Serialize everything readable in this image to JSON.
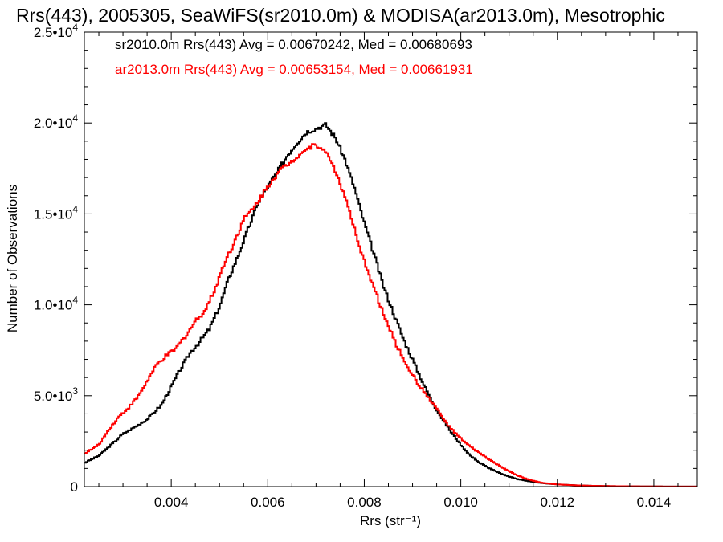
{
  "chart_data": {
    "type": "line",
    "title": "Rrs(443), 2005305, SeaWiFS(sr2010.0m) & MODISA(ar2013.0m), Mesotrophic",
    "xlabel": "Rrs (str⁻¹)",
    "ylabel": "Number of Observations",
    "xlim": [
      0.0022,
      0.0149
    ],
    "ylim": [
      0,
      25000
    ],
    "grid": false,
    "step": true,
    "x_ticks": [
      0.004,
      0.006,
      0.008,
      0.01,
      0.012,
      0.014
    ],
    "x_tick_labels": [
      "0.004",
      "0.006",
      "0.008",
      "0.010",
      "0.012",
      "0.014"
    ],
    "y_ticks": [
      {
        "value": 0,
        "mant": "0",
        "exp": ""
      },
      {
        "value": 5000,
        "mant": "5.0•10",
        "exp": "3"
      },
      {
        "value": 10000,
        "mant": "1.0•10",
        "exp": "4"
      },
      {
        "value": 15000,
        "mant": "1.5•10",
        "exp": "4"
      },
      {
        "value": 20000,
        "mant": "2.0•10",
        "exp": "4"
      },
      {
        "value": 25000,
        "mant": "2.5•10",
        "exp": "4"
      }
    ],
    "annotations": [
      {
        "text": "sr2010.0m Rrs(443) Avg = 0.00670242, Med = 0.00680693",
        "color": "#000000"
      },
      {
        "text": "ar2013.0m Rrs(443) Avg = 0.00653154, Med = 0.00661931",
        "color": "#ff0000"
      }
    ],
    "series": [
      {
        "color": "#000000",
        "x": [
          0.0022,
          0.0025,
          0.0028,
          0.003,
          0.0032,
          0.0035,
          0.0038,
          0.004,
          0.0042,
          0.0044,
          0.0046,
          0.0048,
          0.005,
          0.0052,
          0.0054,
          0.0056,
          0.0058,
          0.006,
          0.0062,
          0.0064,
          0.0066,
          0.0068,
          0.007,
          0.0072,
          0.0074,
          0.0076,
          0.0078,
          0.008,
          0.0082,
          0.0084,
          0.0086,
          0.0088,
          0.009,
          0.0092,
          0.0094,
          0.0096,
          0.0098,
          0.01,
          0.0102,
          0.0104,
          0.0106,
          0.0108,
          0.011,
          0.0112,
          0.0114,
          0.0116,
          0.0118,
          0.012,
          0.0124,
          0.0128,
          0.0132,
          0.0136,
          0.014,
          0.0145,
          0.0149
        ],
        "y": [
          1300,
          1700,
          2400,
          2900,
          3200,
          3700,
          4500,
          5500,
          6500,
          7400,
          8000,
          8700,
          9900,
          11500,
          12800,
          14200,
          15600,
          16500,
          17300,
          18200,
          18900,
          19500,
          19700,
          19900,
          19200,
          18000,
          16400,
          14500,
          12800,
          11000,
          9600,
          8200,
          7000,
          5800,
          4700,
          3800,
          3000,
          2300,
          1700,
          1300,
          1000,
          750,
          550,
          400,
          300,
          220,
          160,
          120,
          70,
          40,
          25,
          15,
          10,
          5,
          3
        ]
      },
      {
        "color": "#ff0000",
        "x": [
          0.0022,
          0.0025,
          0.0027,
          0.0029,
          0.0031,
          0.0033,
          0.0035,
          0.0037,
          0.0039,
          0.0041,
          0.0043,
          0.0045,
          0.0047,
          0.0049,
          0.0051,
          0.0053,
          0.0055,
          0.0057,
          0.0059,
          0.0061,
          0.0063,
          0.0065,
          0.0067,
          0.0069,
          0.007,
          0.0071,
          0.0073,
          0.0075,
          0.0077,
          0.0079,
          0.0081,
          0.0083,
          0.0085,
          0.0087,
          0.0089,
          0.0091,
          0.0093,
          0.0095,
          0.0097,
          0.0099,
          0.0101,
          0.0103,
          0.0105,
          0.0107,
          0.0109,
          0.0111,
          0.0113,
          0.0115,
          0.0117,
          0.012,
          0.0124,
          0.0128,
          0.0132,
          0.0136,
          0.014,
          0.0145,
          0.0149
        ],
        "y": [
          1800,
          2300,
          3100,
          3800,
          4300,
          4900,
          5800,
          6700,
          7200,
          7600,
          8300,
          9100,
          9700,
          10800,
          12300,
          13400,
          14700,
          15300,
          16100,
          16900,
          17500,
          17900,
          18400,
          18700,
          18800,
          18700,
          18000,
          16700,
          15100,
          13100,
          11700,
          10200,
          8800,
          7600,
          6600,
          5700,
          5000,
          4300,
          3500,
          2900,
          2400,
          2000,
          1650,
          1300,
          1000,
          700,
          480,
          320,
          200,
          120,
          70,
          40,
          25,
          15,
          10,
          5,
          3
        ]
      }
    ]
  }
}
